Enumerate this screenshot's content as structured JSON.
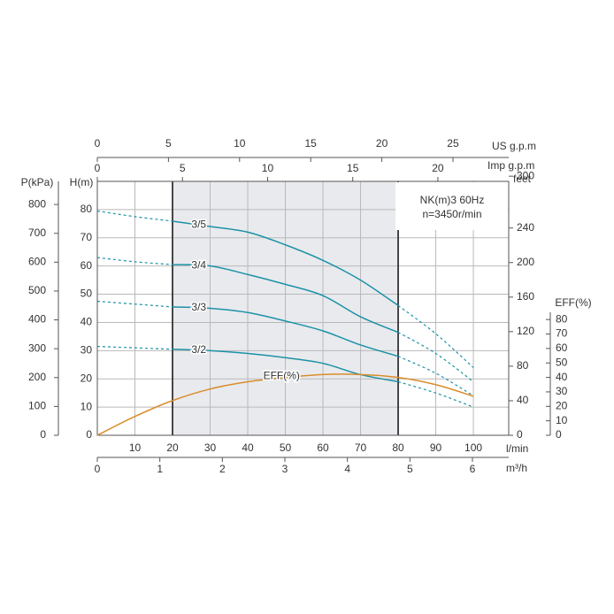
{
  "chart_data": {
    "type": "line",
    "annotations": [
      "NK(m)3 60Hz",
      "n=3450r/min"
    ],
    "xlabel": "l/min",
    "x": [
      0,
      10,
      20,
      30,
      40,
      50,
      60,
      70,
      80,
      90,
      100
    ],
    "xlim": [
      0,
      109.4
    ],
    "xticks": [
      10,
      20,
      30,
      40,
      50,
      60,
      70,
      80,
      90,
      100
    ],
    "ylabel": "H(m)",
    "ylim": [
      0,
      90
    ],
    "yticks": [
      0,
      10,
      20,
      30,
      40,
      50,
      60,
      70,
      80
    ],
    "grid": true,
    "operating_range": [
      20,
      80
    ],
    "m3h_axis": {
      "label": "m³/h",
      "lim": [
        0,
        6.58
      ],
      "ticks": [
        0,
        1,
        2,
        3,
        4,
        5,
        6
      ]
    },
    "us_gpm_axis": {
      "label": "US g.p.m",
      "lim": [
        0,
        28.92
      ],
      "ticks": [
        0,
        5,
        10,
        15,
        20,
        25
      ]
    },
    "imp_gpm_axis": {
      "label": "Imp g.p.m",
      "lim": [
        0,
        24.16
      ],
      "ticks": [
        0,
        5,
        10,
        15,
        20
      ]
    },
    "p_axis": {
      "label": "P(kPa)",
      "lim": [
        0,
        880
      ],
      "ticks": [
        0,
        100,
        200,
        300,
        400,
        500,
        600,
        700,
        800
      ]
    },
    "feet_axis": {
      "label": "feet",
      "lim": [
        0,
        294
      ],
      "ticks": [
        0,
        40,
        80,
        120,
        160,
        200,
        240,
        300
      ]
    },
    "eff_axis": {
      "label": "EFF(%)",
      "lim": [
        0,
        85
      ],
      "ticks": [
        0,
        10,
        20,
        30,
        40,
        50,
        60,
        70,
        80
      ]
    },
    "series": [
      {
        "name": "3/5",
        "color": "#1b92a6",
        "style": "dashed-outside-range",
        "values": [
          79.5,
          77.5,
          75.9,
          74,
          72,
          67.5,
          62,
          55,
          46,
          36,
          24
        ]
      },
      {
        "name": "3/4",
        "color": "#1b92a6",
        "style": "dashed-outside-range",
        "values": [
          63,
          61.5,
          60.5,
          60,
          57,
          53.5,
          49.5,
          42,
          36.5,
          29,
          19
        ]
      },
      {
        "name": "3/3",
        "color": "#1b92a6",
        "style": "dashed-outside-range",
        "values": [
          47.5,
          46.5,
          45.5,
          45,
          43.5,
          40.5,
          37,
          32,
          28,
          22,
          14
        ]
      },
      {
        "name": "3/2",
        "color": "#1b92a6",
        "style": "dashed-outside-range",
        "values": [
          31.5,
          31,
          30.5,
          30,
          29,
          27.5,
          25.5,
          21.5,
          19,
          15,
          10
        ]
      },
      {
        "name": "EFF(%)",
        "color": "#d98c2b",
        "style": "solid",
        "axis": "eff",
        "values": [
          0,
          13,
          24,
          32,
          37,
          40,
          42,
          42,
          40,
          35,
          27
        ]
      }
    ]
  }
}
